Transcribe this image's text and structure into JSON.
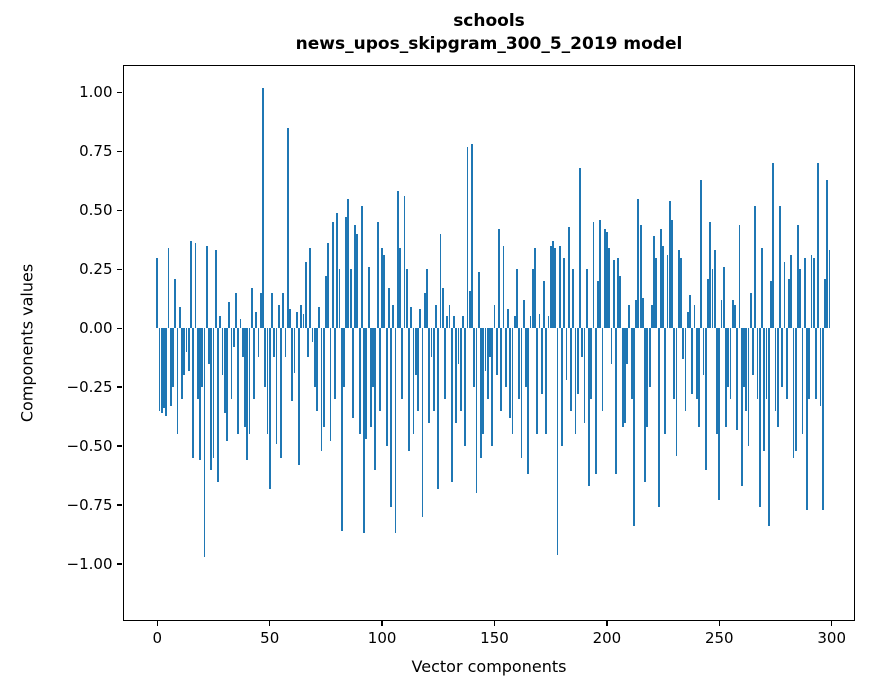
{
  "figure": {
    "title_line1": "schools",
    "title_line2": "news_upos_skipgram_300_5_2019 model",
    "background": "#ffffff",
    "frame_color": "#000000"
  },
  "chart_data": {
    "type": "bar",
    "title": "schools",
    "subtitle": "news_upos_skipgram_300_5_2019 model",
    "xlabel": "Vector components",
    "ylabel": "Components values",
    "bar_color": "#1f77b4",
    "grid": false,
    "legend": null,
    "n_bars": 300,
    "xlim": [
      -14.6,
      309.7
    ],
    "ylim": [
      -1.235,
      1.11
    ],
    "x_tick_values": [
      0,
      50,
      100,
      150,
      200,
      250,
      300
    ],
    "x_tick_labels": [
      "0",
      "50",
      "100",
      "150",
      "200",
      "250",
      "300"
    ],
    "y_tick_values": [
      1.0,
      0.75,
      0.5,
      0.25,
      0.0,
      -0.25,
      -0.5,
      -0.75,
      -1.0
    ],
    "y_tick_labels": [
      "1.00",
      "0.75",
      "0.50",
      "0.25",
      "0.00",
      "−0.25",
      "−0.50",
      "−0.75",
      "−1.00"
    ],
    "values": [
      0.3,
      -0.35,
      -0.36,
      -0.34,
      -0.37,
      0.34,
      -0.33,
      -0.25,
      0.21,
      -0.45,
      0.09,
      -0.3,
      -0.2,
      -0.1,
      -0.18,
      0.37,
      -0.55,
      0.36,
      -0.3,
      -0.56,
      -0.25,
      -0.97,
      0.35,
      -0.15,
      -0.6,
      -0.55,
      0.33,
      -0.65,
      0.05,
      -0.2,
      -0.36,
      -0.48,
      0.11,
      -0.3,
      -0.08,
      0.15,
      -0.45,
      0.04,
      -0.12,
      -0.42,
      -0.56,
      -0.45,
      0.17,
      -0.3,
      0.07,
      -0.12,
      0.15,
      1.02,
      -0.25,
      -0.45,
      -0.68,
      0.15,
      -0.12,
      -0.49,
      0.1,
      -0.55,
      0.15,
      -0.12,
      0.85,
      0.08,
      -0.31,
      -0.19,
      0.07,
      -0.58,
      0.1,
      0.06,
      0.28,
      -0.12,
      0.34,
      -0.06,
      -0.25,
      -0.35,
      0.09,
      -0.52,
      -0.42,
      0.22,
      0.36,
      -0.48,
      0.45,
      -0.3,
      0.49,
      0.25,
      -0.86,
      -0.25,
      0.47,
      0.55,
      0.25,
      -0.38,
      0.44,
      0.4,
      -0.45,
      0.52,
      -0.87,
      -0.47,
      0.26,
      -0.42,
      -0.25,
      -0.6,
      0.45,
      -0.35,
      0.34,
      0.31,
      -0.5,
      0.17,
      -0.76,
      0.1,
      -0.87,
      0.58,
      0.34,
      -0.3,
      0.56,
      0.25,
      -0.52,
      0.09,
      -0.45,
      -0.2,
      -0.35,
      0.08,
      -0.8,
      0.15,
      0.25,
      -0.4,
      -0.12,
      -0.35,
      0.1,
      -0.68,
      0.4,
      0.17,
      -0.3,
      0.05,
      0.1,
      -0.65,
      0.05,
      -0.4,
      -0.15,
      -0.35,
      0.05,
      -0.5,
      0.77,
      0.16,
      0.78,
      -0.25,
      -0.7,
      0.24,
      -0.55,
      -0.45,
      -0.18,
      -0.3,
      -0.12,
      -0.5,
      0.1,
      -0.2,
      0.42,
      -0.35,
      0.35,
      -0.25,
      0.08,
      -0.38,
      -0.45,
      0.05,
      0.25,
      -0.3,
      -0.55,
      0.12,
      -0.25,
      -0.62,
      0.05,
      0.25,
      0.34,
      -0.45,
      0.06,
      -0.28,
      0.2,
      -0.45,
      0.05,
      0.35,
      0.37,
      0.34,
      -0.96,
      0.35,
      -0.5,
      0.3,
      -0.22,
      0.43,
      -0.35,
      0.25,
      -0.45,
      -0.28,
      0.68,
      -0.12,
      -0.4,
      0.25,
      -0.67,
      -0.3,
      0.45,
      -0.62,
      0.2,
      0.46,
      -0.35,
      0.42,
      0.41,
      0.34,
      -0.15,
      0.29,
      -0.62,
      0.3,
      0.22,
      -0.42,
      -0.4,
      -0.15,
      0.1,
      -0.3,
      -0.84,
      0.12,
      0.55,
      0.44,
      0.13,
      -0.65,
      -0.42,
      -0.25,
      0.1,
      0.39,
      0.3,
      -0.76,
      0.42,
      0.35,
      -0.45,
      0.31,
      0.54,
      0.46,
      -0.3,
      -0.54,
      0.33,
      0.3,
      -0.13,
      -0.35,
      0.07,
      0.14,
      -0.28,
      0.1,
      -0.3,
      -0.42,
      0.63,
      -0.2,
      -0.6,
      0.21,
      0.45,
      0.25,
      0.33,
      -0.45,
      -0.73,
      0.12,
      0.26,
      -0.42,
      -0.25,
      -0.3,
      0.12,
      0.1,
      -0.43,
      0.44,
      -0.67,
      -0.25,
      -0.35,
      -0.5,
      0.15,
      -0.2,
      0.52,
      -0.3,
      -0.76,
      0.34,
      -0.52,
      -0.3,
      -0.84,
      0.2,
      0.7,
      -0.35,
      -0.42,
      0.52,
      -0.25,
      0.28,
      -0.3,
      0.21,
      0.31,
      -0.55,
      -0.52,
      0.44,
      0.25,
      -0.45,
      0.3,
      -0.77,
      -0.3,
      0.31,
      0.3,
      -0.3,
      0.7,
      -0.33,
      -0.77,
      0.21,
      0.63,
      0.33
    ]
  }
}
